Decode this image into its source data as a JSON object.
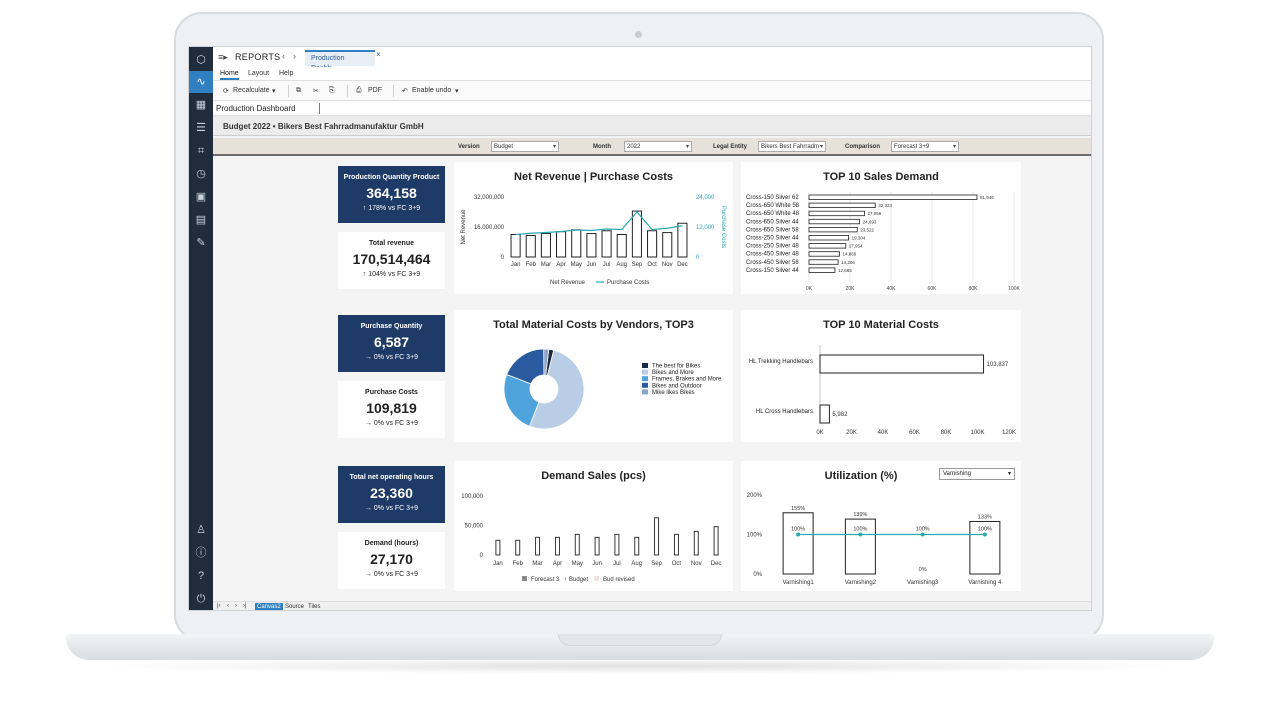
{
  "app": {
    "title": "REPORTS",
    "tab_label": "Production Dashb...",
    "tab_close": "×",
    "nav_back": "‹",
    "nav_forward": "›",
    "menu_icon": "≡▸"
  },
  "menubar": {
    "home": "Home",
    "layout": "Layout",
    "help": "Help"
  },
  "toolbar": {
    "recalculate": "Recalculate",
    "pdf": "PDF",
    "enable_undo": "Enable undo",
    "caret": "▾"
  },
  "formula_bar": {
    "value": "Production Dashboard"
  },
  "report_subtitle": "Budget 2022 • Bikers Best Fahrradmanufaktur GmbH",
  "filters": {
    "version_label": "Version",
    "version_value": "Budget",
    "month_label": "Month",
    "month_value": "2022",
    "entity_label": "Legal Entity",
    "entity_value": "Bikers Best Fahrradm",
    "comparison_label": "Comparison",
    "comparison_value": "Forecast 3+9"
  },
  "kpis": [
    {
      "label": "Production Quantity Product",
      "value": "364,158",
      "sub": "178% vs FC 3+9",
      "arrow": "↑",
      "dark": true
    },
    {
      "label": "Total revenue",
      "value": "170,514,464",
      "sub": "104% vs FC 3+9",
      "arrow": "↑",
      "dark": false
    },
    {
      "label": "Purchase Quantity",
      "value": "6,587",
      "sub": "0% vs FC 3+9",
      "arrow": "→",
      "dark": true
    },
    {
      "label": "Purchase Costs",
      "value": "109,819",
      "sub": "0% vs FC 3+9",
      "arrow": "→",
      "dark": false
    },
    {
      "label": "Total net operating hours",
      "value": "23,360",
      "sub": "0% vs FC 3+9",
      "arrow": "→",
      "dark": true
    },
    {
      "label": "Demand (hours)",
      "value": "27,170",
      "sub": "0% vs FC 3+9",
      "arrow": "→",
      "dark": false
    }
  ],
  "utilization_dropdown": "Varnishing",
  "bottom_tabs": [
    "Canvas2",
    "Source",
    "Tiles"
  ],
  "bottom_nav": [
    "|‹",
    "‹",
    "›",
    "›|"
  ],
  "colors": {
    "navy": "#1e3a66",
    "teal": "#2aa9b5",
    "sidebar": "#1f2d3d",
    "accent": "#2f7fc1"
  },
  "chart_data": [
    {
      "type": "bar",
      "title": "Net Revenue | Purchase Costs",
      "ylabel": "Net Revenue",
      "y2label": "Purchase Costs",
      "categories": [
        "Jan",
        "Feb",
        "Mar",
        "Apr",
        "May",
        "Jun",
        "Jul",
        "Aug",
        "Sep",
        "Oct",
        "Nov",
        "Dec"
      ],
      "yticks": [
        "32,000,000",
        "16,000,000",
        "0"
      ],
      "y2ticks": [
        "24,000",
        "12,000",
        "0"
      ],
      "ylim": [
        0,
        32000000
      ],
      "y2lim": [
        0,
        24000
      ],
      "series": [
        {
          "name": "Net Revenue",
          "kind": "bar",
          "values": [
            [
              12000000,
              11500000,
              12500000,
              13500000,
              14500000,
              12500000,
              14000000,
              12000000,
              24500000,
              14000000,
              13000000,
              18000000
            ]
          ]
        },
        {
          "name": "Purchase Costs",
          "kind": "line",
          "values": [
            9000,
            9500,
            9800,
            10200,
            10800,
            10600,
            11200,
            11000,
            18000,
            11000,
            11500,
            12500
          ]
        }
      ]
    },
    {
      "type": "bar",
      "orientation": "horizontal",
      "title": "TOP 10 Sales Demand",
      "categories": [
        "Cross-150 Silver 62",
        "Cross-650 White 58",
        "Cross-650 White 48",
        "Cross-650 Silver 44",
        "Cross-650 Silver 58",
        "Cross-250 Silver 44",
        "Cross-250 Silver 48",
        "Cross-450 Silver 48",
        "Cross-450 Silver 58",
        "Cross-150 Silver 44"
      ],
      "values": [
        81946,
        32324,
        27056,
        24693,
        23522,
        19304,
        17954,
        14869,
        14206,
        12665
      ],
      "value_labels": [
        "81,946",
        "32,324",
        "27,056",
        "24,693",
        "23,522",
        "19,304",
        "17,954",
        "14,869",
        "14,206",
        "12,665"
      ],
      "xticks": [
        "0K",
        "20K",
        "40K",
        "60K",
        "80K",
        "100K"
      ],
      "xlim": [
        0,
        100000
      ]
    },
    {
      "type": "pie",
      "title": "Total Material Costs by Vendors, TOP3",
      "labels": [
        "The best for Bikes",
        "Bikes and More",
        "Frames, Brakes and More",
        "Bikes and Outdoor",
        "Mike likes Bikes"
      ],
      "values": [
        2,
        52,
        25,
        19,
        2
      ],
      "colors": [
        "#1a2a44",
        "#b9cde6",
        "#4ea3dc",
        "#2c5aa0",
        "#8aa3c8"
      ]
    },
    {
      "type": "bar",
      "orientation": "horizontal",
      "title": "TOP 10 Material Costs",
      "categories": [
        "HL Trekking Handlebars",
        "HL Cross Handlebars"
      ],
      "values": [
        103837,
        5982
      ],
      "value_labels": [
        "103,837",
        "5,982"
      ],
      "xticks": [
        "0K",
        "20K",
        "40K",
        "60K",
        "80K",
        "100K",
        "120K"
      ],
      "xlim": [
        0,
        120000
      ]
    },
    {
      "type": "bar",
      "title": "Demand Sales (pcs)",
      "categories": [
        "Jan",
        "Feb",
        "Mar",
        "Apr",
        "May",
        "Jun",
        "Jul",
        "Aug",
        "Sep",
        "Oct",
        "Nov",
        "Dec"
      ],
      "yticks": [
        "100,000",
        "50,000",
        "0"
      ],
      "ylim": [
        0,
        100000
      ],
      "values": [
        25000,
        25000,
        30000,
        30000,
        35000,
        30000,
        35000,
        30000,
        63000,
        35000,
        40000,
        48000
      ],
      "legend": [
        "Forecast 3+9",
        "Budget",
        "Bud revised"
      ]
    },
    {
      "type": "bar",
      "title": "Utilization (%)",
      "categories": [
        "Varnishing1",
        "Varnishing2",
        "Varnishing3",
        "Varnishing 4"
      ],
      "values": [
        155,
        139,
        0,
        133
      ],
      "value_labels": [
        "155%",
        "139%",
        "0%",
        "133%"
      ],
      "target": [
        100,
        100,
        100,
        100
      ],
      "target_labels": [
        "100%",
        "100%",
        "100%",
        "100%"
      ],
      "yticks": [
        "200%",
        "100%",
        "0%"
      ],
      "ylim": [
        0,
        200
      ]
    }
  ]
}
